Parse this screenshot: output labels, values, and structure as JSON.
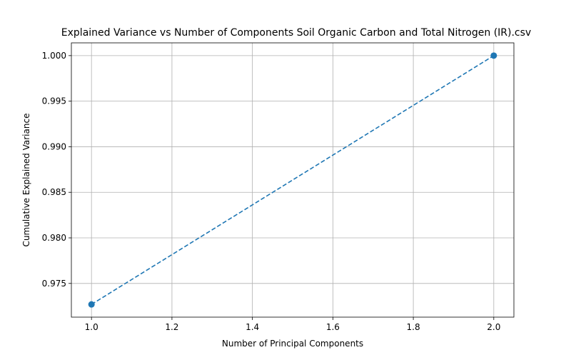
{
  "chart_data": {
    "type": "line",
    "title": "Explained Variance vs Number of Components Soil Organic Carbon and Total Nitrogen (IR).csv",
    "xlabel": "Number of Principal Components",
    "ylabel": "Cumulative Explained Variance",
    "x": [
      1,
      2
    ],
    "series": [
      {
        "values": [
          0.9727,
          1.0
        ],
        "color": "#1f77b4",
        "line_style": "dashed",
        "marker": "circle"
      }
    ],
    "xlim": [
      0.95,
      2.05
    ],
    "ylim": [
      0.9713,
      1.0014
    ],
    "xticks": [
      1.0,
      1.2,
      1.4,
      1.6,
      1.8,
      2.0
    ],
    "xtick_labels": [
      "1.0",
      "1.2",
      "1.4",
      "1.6",
      "1.8",
      "2.0"
    ],
    "yticks": [
      0.975,
      0.98,
      0.985,
      0.99,
      0.995,
      1.0
    ],
    "ytick_labels": [
      "0.975",
      "0.980",
      "0.985",
      "0.990",
      "0.995",
      "1.000"
    ],
    "grid": true,
    "legend": "none"
  }
}
